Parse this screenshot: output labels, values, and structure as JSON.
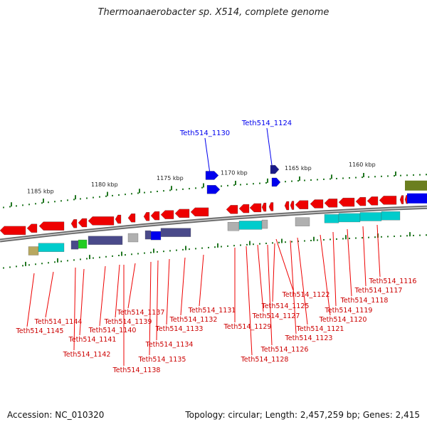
{
  "title": "Thermoanaerobacter sp. X514, complete genome",
  "footer": {
    "accession": "Accession: NC_010320",
    "info": "Topology: circular; Length: 2,457,259 bp; Genes: 2,415"
  },
  "colors": {
    "red": "#ee0000",
    "blue": "#0000ee",
    "darkblue": "#1a1a8a",
    "cyan": "#00cccc",
    "navy": "#4a4a8a",
    "grey": "#b0b0b0",
    "olive": "#6b7f1f",
    "green": "#22cc22",
    "tan": "#b8a860",
    "axis": "#888888",
    "tick": "#227722"
  },
  "kbp_labels": [
    "1185 kbp",
    "1180 kbp",
    "1175 kbp",
    "1170 kbp",
    "1165 kbp",
    "1160 kbp"
  ],
  "top_labels": [
    "Teth514_1130",
    "Teth514_1124"
  ],
  "bottom_labels": [
    "Teth514_1144",
    "Teth514_1145",
    "Teth514_1141",
    "Teth514_1142",
    "Teth514_1140",
    "Teth514_1139",
    "Teth514_1138",
    "Teth514_1137",
    "Teth514_1135",
    "Teth514_1134",
    "Teth514_1133",
    "Teth514_1132",
    "Teth514_1131",
    "Teth514_1129",
    "Teth514_1128",
    "Teth514_1127",
    "Teth514_1126",
    "Teth514_1125",
    "Teth514_1123",
    "Teth514_1122",
    "Teth514_1121",
    "Teth514_1120",
    "Teth514_1119",
    "Teth514_1118",
    "Teth514_1117",
    "Teth514_1116"
  ]
}
